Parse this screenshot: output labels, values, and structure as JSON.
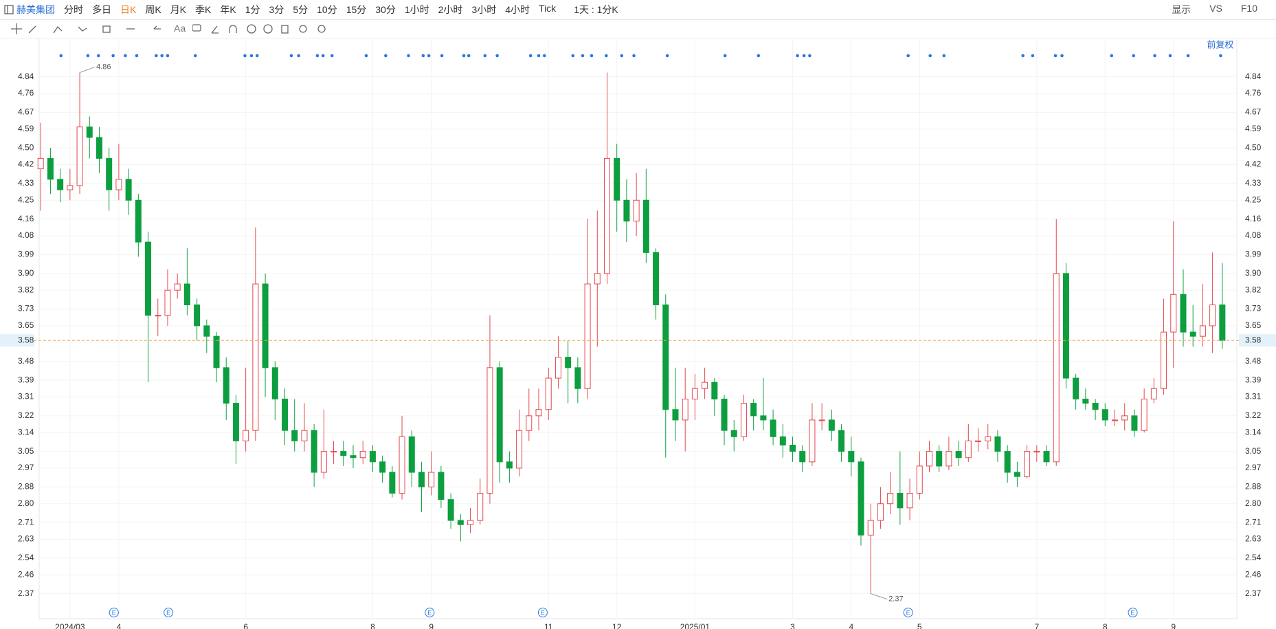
{
  "toolbar": {
    "stock": "赫美集团",
    "periods": [
      "分时",
      "多日",
      "日K",
      "周K",
      "月K",
      "季K",
      "年K",
      "1分",
      "3分",
      "5分",
      "10分",
      "15分",
      "30分",
      "1小时",
      "2小时",
      "3小时",
      "4小时",
      "Tick"
    ],
    "range": "1天 : 1分K",
    "display": "显示",
    "vs": "VS",
    "f10": "F10"
  },
  "drawing_tools": {
    "text_tool": "Aa"
  },
  "adjust": "前复权",
  "chart_data": {
    "type": "candlestick",
    "categories": [
      null,
      null,
      null,
      "2024/03",
      null,
      null,
      null,
      null,
      "4",
      null,
      null,
      null,
      null,
      null,
      null,
      null,
      null,
      null,
      null,
      null,
      null,
      "6",
      null,
      null,
      null,
      null,
      null,
      null,
      null,
      null,
      null,
      null,
      null,
      null,
      "8",
      null,
      null,
      null,
      null,
      null,
      "9",
      null,
      null,
      null,
      null,
      null,
      null,
      null,
      null,
      null,
      null,
      null,
      "11",
      null,
      null,
      null,
      null,
      null,
      null,
      "12",
      null,
      null,
      null,
      null,
      null,
      null,
      null,
      "2025/01",
      null,
      null,
      null,
      null,
      null,
      null,
      null,
      null,
      null,
      "3",
      null,
      null,
      null,
      null,
      null,
      "4",
      null,
      null,
      null,
      null,
      null,
      null,
      "5",
      null,
      null,
      null,
      null,
      null,
      null,
      null,
      null,
      null,
      null,
      null,
      "7",
      null,
      null,
      null,
      null,
      null,
      null,
      "8",
      null,
      null,
      null,
      null,
      null,
      null,
      "9",
      null,
      null,
      null,
      null,
      null
    ],
    "open": [
      4.4,
      4.45,
      4.35,
      4.3,
      4.32,
      4.6,
      4.55,
      4.45,
      4.3,
      4.35,
      4.25,
      4.05,
      3.7,
      3.7,
      3.82,
      3.85,
      3.75,
      3.65,
      3.6,
      3.45,
      3.28,
      3.1,
      3.15,
      3.85,
      3.45,
      3.3,
      3.15,
      3.1,
      3.15,
      2.95,
      3.05,
      3.05,
      3.03,
      3.02,
      3.05,
      3.0,
      2.95,
      2.85,
      3.12,
      2.95,
      2.88,
      2.95,
      2.82,
      2.72,
      2.7,
      2.72,
      2.85,
      3.45,
      3.0,
      2.97,
      3.15,
      3.22,
      3.25,
      3.4,
      3.5,
      3.45,
      3.35,
      3.85,
      3.9,
      4.45,
      4.25,
      4.15,
      4.25,
      4.0,
      3.75,
      3.25,
      3.2,
      3.3,
      3.35,
      3.38,
      3.3,
      3.15,
      3.12,
      3.28,
      3.22,
      3.2,
      3.12,
      3.08,
      3.05,
      3.0,
      3.2,
      3.2,
      3.15,
      3.05,
      3.0,
      2.65,
      2.72,
      2.8,
      2.85,
      2.78,
      2.85,
      2.98,
      3.05,
      2.98,
      3.05,
      3.02,
      3.1,
      3.1,
      3.12,
      3.05,
      2.95,
      2.93,
      3.05,
      3.05,
      3.0,
      3.9,
      3.4,
      3.3,
      3.28,
      3.25,
      3.2,
      3.2,
      3.22,
      3.15,
      3.3,
      3.35,
      3.62,
      3.8,
      3.62,
      3.6,
      3.65,
      3.75
    ],
    "high": [
      4.62,
      4.5,
      4.4,
      4.4,
      4.86,
      4.65,
      4.6,
      4.5,
      4.52,
      4.4,
      4.28,
      4.1,
      3.78,
      3.92,
      3.9,
      4.02,
      3.78,
      3.68,
      3.62,
      3.5,
      3.32,
      3.45,
      4.12,
      3.9,
      3.48,
      3.35,
      3.3,
      3.28,
      3.18,
      3.25,
      3.1,
      3.1,
      3.08,
      3.1,
      3.08,
      3.03,
      2.98,
      3.22,
      3.15,
      3.0,
      3.05,
      2.98,
      2.85,
      2.75,
      2.78,
      2.92,
      3.7,
      3.48,
      3.05,
      3.25,
      3.35,
      3.35,
      3.45,
      3.6,
      3.58,
      3.5,
      4.16,
      4.2,
      4.86,
      4.52,
      4.35,
      4.38,
      4.4,
      4.02,
      3.8,
      3.45,
      3.45,
      3.42,
      3.45,
      3.4,
      3.32,
      3.2,
      3.32,
      3.3,
      3.4,
      3.25,
      3.18,
      3.12,
      3.08,
      3.28,
      3.28,
      3.25,
      3.18,
      3.12,
      3.02,
      2.8,
      2.88,
      2.95,
      3.05,
      2.92,
      3.05,
      3.1,
      3.08,
      3.12,
      3.1,
      3.18,
      3.16,
      3.18,
      3.15,
      3.08,
      3.0,
      3.08,
      3.08,
      3.08,
      4.16,
      3.95,
      3.42,
      3.35,
      3.3,
      3.28,
      3.25,
      3.28,
      3.25,
      3.35,
      3.4,
      3.78,
      4.15,
      3.92,
      3.75,
      3.85,
      4.0,
      3.95
    ],
    "low": [
      4.2,
      4.28,
      4.24,
      4.25,
      4.28,
      4.45,
      4.38,
      4.2,
      4.25,
      4.18,
      3.98,
      3.38,
      3.6,
      3.65,
      3.78,
      3.7,
      3.58,
      3.52,
      3.38,
      3.2,
      2.99,
      3.05,
      3.1,
      3.31,
      3.2,
      3.08,
      3.05,
      3.05,
      2.88,
      2.92,
      2.99,
      2.98,
      2.97,
      2.99,
      2.95,
      2.9,
      2.83,
      2.82,
      2.88,
      2.76,
      2.84,
      2.78,
      2.68,
      2.62,
      2.66,
      2.7,
      2.8,
      2.9,
      2.9,
      2.93,
      3.1,
      3.15,
      3.2,
      3.35,
      3.28,
      3.28,
      3.3,
      3.55,
      3.85,
      4.1,
      4.05,
      4.08,
      3.95,
      3.68,
      3.02,
      3.1,
      3.05,
      3.2,
      3.3,
      3.22,
      3.08,
      3.05,
      3.1,
      3.15,
      3.15,
      3.08,
      3.02,
      3.0,
      2.95,
      2.98,
      3.15,
      3.1,
      3.0,
      2.93,
      2.6,
      2.37,
      2.68,
      2.75,
      2.7,
      2.72,
      2.82,
      2.95,
      2.95,
      2.96,
      2.98,
      3.0,
      3.05,
      3.06,
      3.0,
      2.9,
      2.88,
      2.92,
      3.0,
      2.98,
      2.98,
      3.35,
      3.25,
      3.25,
      3.2,
      3.17,
      3.17,
      3.15,
      3.12,
      3.14,
      3.28,
      3.32,
      3.45,
      3.55,
      3.55,
      3.55,
      3.52,
      3.54
    ],
    "close": [
      4.45,
      4.35,
      4.3,
      4.32,
      4.6,
      4.55,
      4.45,
      4.3,
      4.35,
      4.25,
      4.05,
      3.7,
      3.7,
      3.82,
      3.85,
      3.75,
      3.65,
      3.6,
      3.45,
      3.28,
      3.1,
      3.15,
      3.85,
      3.45,
      3.3,
      3.15,
      3.1,
      3.15,
      2.95,
      3.05,
      3.05,
      3.03,
      3.02,
      3.05,
      3.0,
      2.95,
      2.85,
      3.12,
      2.95,
      2.88,
      2.95,
      2.82,
      2.72,
      2.7,
      2.72,
      2.85,
      3.45,
      3.0,
      2.97,
      3.15,
      3.22,
      3.25,
      3.4,
      3.5,
      3.45,
      3.35,
      3.85,
      3.9,
      4.45,
      4.25,
      4.15,
      4.25,
      4.0,
      3.75,
      3.25,
      3.2,
      3.3,
      3.35,
      3.38,
      3.3,
      3.15,
      3.12,
      3.28,
      3.22,
      3.2,
      3.12,
      3.08,
      3.05,
      3.0,
      3.2,
      3.2,
      3.15,
      3.05,
      3.0,
      2.65,
      2.72,
      2.8,
      2.85,
      2.78,
      2.85,
      2.98,
      3.05,
      2.98,
      3.05,
      3.02,
      3.1,
      3.1,
      3.12,
      3.05,
      2.95,
      2.93,
      3.05,
      3.05,
      3.0,
      3.9,
      3.4,
      3.3,
      3.28,
      3.25,
      3.2,
      3.2,
      3.22,
      3.15,
      3.3,
      3.35,
      3.62,
      3.8,
      3.62,
      3.6,
      3.65,
      3.75,
      3.58
    ],
    "up_color": "#e5484d",
    "down_color": "#0d9f3f",
    "ylim": [
      2.29,
      4.98
    ],
    "yticks": [
      4.84,
      4.76,
      4.67,
      4.59,
      {
        "value": 4.5,
        "label": "4.50"
      },
      4.42,
      4.33,
      4.25,
      4.16,
      4.08,
      3.99,
      {
        "value": 3.9,
        "label": "3.90"
      },
      3.82,
      3.73,
      3.65,
      3.48,
      3.39,
      3.31,
      3.22,
      3.14,
      3.05,
      2.97,
      2.88,
      {
        "value": 2.8,
        "label": "2.80"
      },
      2.71,
      2.63,
      2.54,
      2.46,
      2.37
    ],
    "max_label": 4.86,
    "min_label": 2.37,
    "last_price": 3.58,
    "events": [
      "E",
      "E",
      "E",
      "E",
      "E",
      "E"
    ],
    "grid": true
  }
}
